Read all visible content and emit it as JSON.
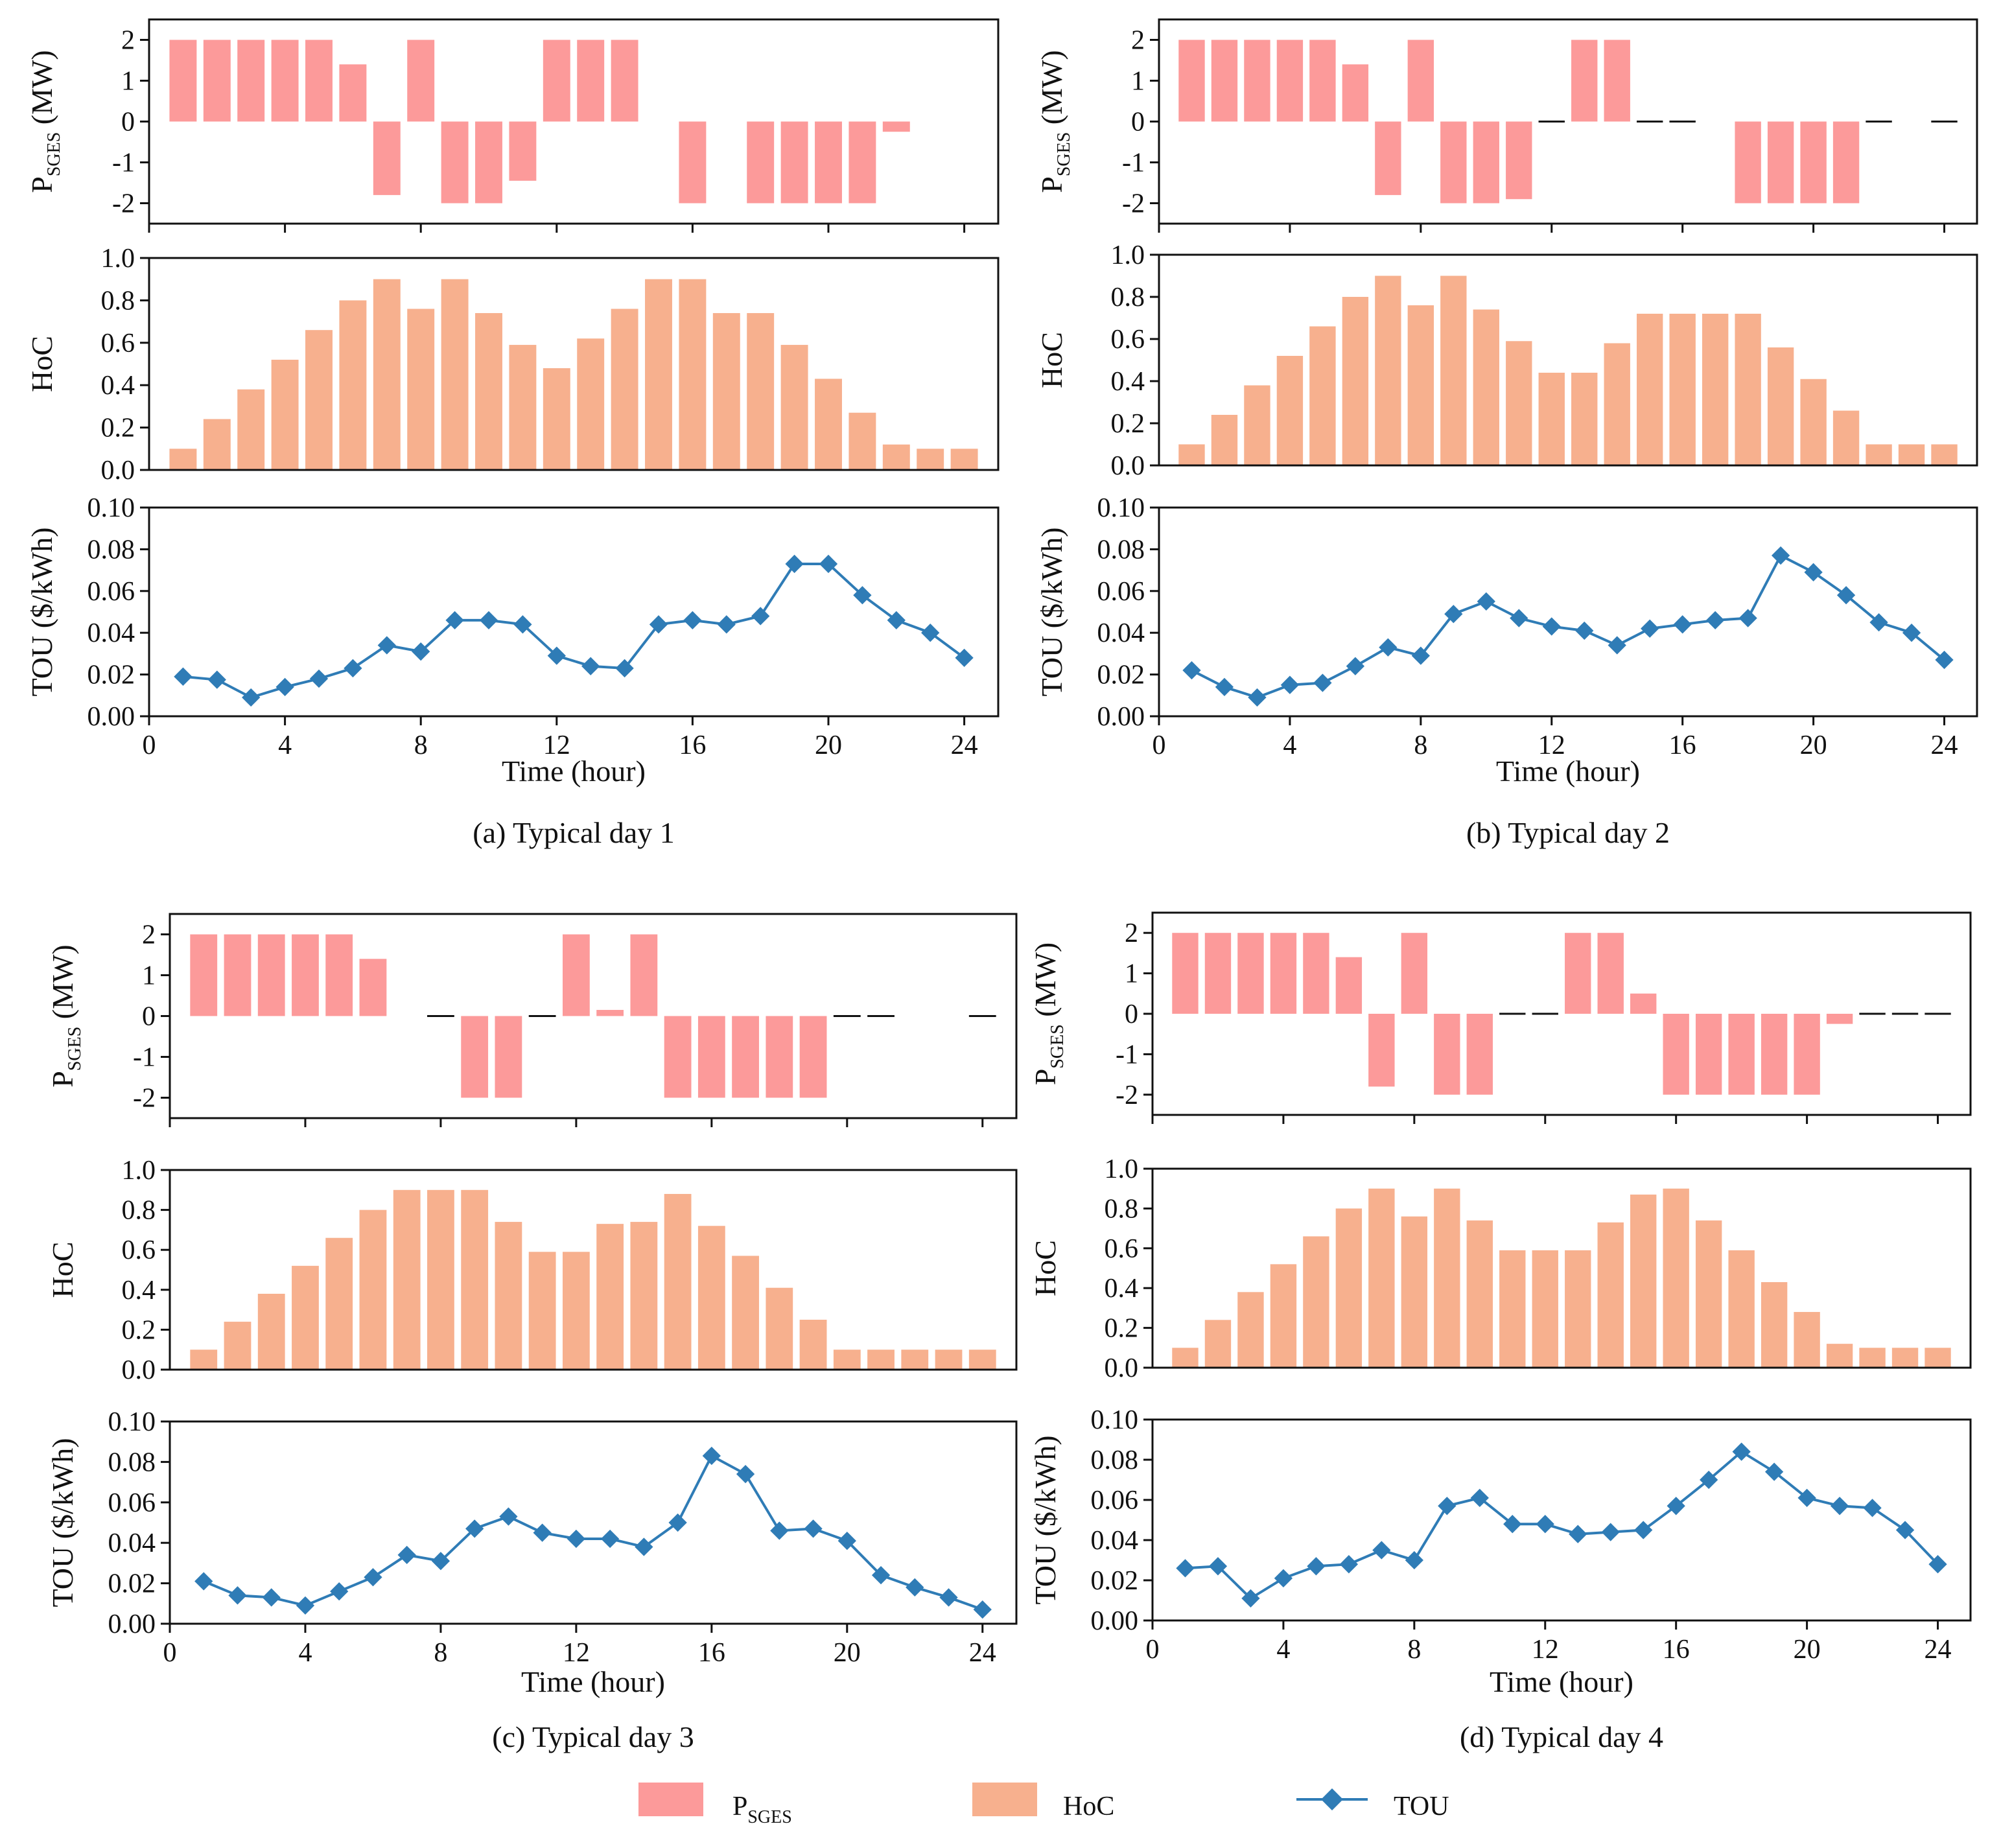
{
  "colors": {
    "psges": "#fc9a9a",
    "hoc": "#f7b08e",
    "tou_line": "#2f7cb6",
    "axis": "#111111"
  },
  "legend": {
    "psges_main": "P",
    "psges_sub": "SGES",
    "hoc": "HoC",
    "tou": "TOU"
  },
  "axis_labels": {
    "psges_main": "P",
    "psges_sub": "SGES",
    "psges_unit": "(MW)",
    "hoc": "HoC",
    "tou": "TOU ($/kWh)",
    "time": "Time (hour)"
  },
  "chart_data": [
    {
      "type": "bar+line",
      "caption": "(a) Typical day 1",
      "x": [
        1,
        2,
        3,
        4,
        5,
        6,
        7,
        8,
        9,
        10,
        11,
        12,
        13,
        14,
        15,
        16,
        17,
        18,
        19,
        20,
        21,
        22,
        23,
        24
      ],
      "psges": {
        "ylabel": "P_SGES (MW)",
        "ylim": [
          -2.5,
          2.5
        ],
        "yticks": [
          "2",
          "1",
          "0",
          "-1",
          "-2"
        ],
        "values": [
          2,
          2,
          2,
          2,
          2,
          1.4,
          -1.8,
          2,
          -2,
          -2,
          -1.45,
          2,
          2,
          2,
          null,
          -2,
          null,
          -2,
          -2,
          -2,
          -2,
          -0.25,
          null,
          null
        ]
      },
      "hoc": {
        "ylabel": "HoC",
        "ylim": [
          0,
          1.0
        ],
        "yticks": [
          "0.0",
          "0.2",
          "0.4",
          "0.6",
          "0.8",
          "1.0"
        ],
        "values": [
          0.1,
          0.24,
          0.38,
          0.52,
          0.66,
          0.8,
          0.9,
          0.76,
          0.9,
          0.74,
          0.59,
          0.48,
          0.62,
          0.76,
          0.9,
          0.9,
          0.74,
          0.74,
          0.59,
          0.43,
          0.27,
          0.12,
          0.1,
          0.1
        ]
      },
      "tou": {
        "ylabel": "TOU ($/kWh)",
        "xlabel": "Time (hour)",
        "ylim": [
          0,
          0.1
        ],
        "xlim": [
          0,
          25
        ],
        "yticks": [
          "0.00",
          "0.02",
          "0.04",
          "0.06",
          "0.08",
          "0.10"
        ],
        "xticks": [
          "0",
          "4",
          "8",
          "12",
          "16",
          "20",
          "24"
        ],
        "values": [
          0.019,
          0.0175,
          0.009,
          0.014,
          0.018,
          0.023,
          0.034,
          0.031,
          0.046,
          0.046,
          0.044,
          0.029,
          0.024,
          0.023,
          0.044,
          0.046,
          0.044,
          0.048,
          0.073,
          0.073,
          0.058,
          0.046,
          0.04,
          0.028
        ]
      }
    },
    {
      "type": "bar+line",
      "caption": "(b) Typical day 2",
      "x": [
        1,
        2,
        3,
        4,
        5,
        6,
        7,
        8,
        9,
        10,
        11,
        12,
        13,
        14,
        15,
        16,
        17,
        18,
        19,
        20,
        21,
        22,
        23,
        24
      ],
      "psges": {
        "ylabel": "P_SGES (MW)",
        "ylim": [
          -2.5,
          2.5
        ],
        "yticks": [
          "2",
          "1",
          "0",
          "-1",
          "-2"
        ],
        "values": [
          2,
          2,
          2,
          2,
          2,
          1.4,
          -1.8,
          2,
          -2,
          -2,
          -1.9,
          0,
          2,
          2,
          0,
          0,
          null,
          -2,
          -2,
          -2,
          -2,
          0,
          null,
          0
        ]
      },
      "hoc": {
        "ylabel": "HoC",
        "ylim": [
          0,
          1.0
        ],
        "yticks": [
          "0.0",
          "0.2",
          "0.4",
          "0.6",
          "0.8",
          "1.0"
        ],
        "values": [
          0.1,
          0.24,
          0.38,
          0.52,
          0.66,
          0.8,
          0.9,
          0.76,
          0.9,
          0.74,
          0.59,
          0.44,
          0.44,
          0.58,
          0.72,
          0.72,
          0.72,
          0.72,
          0.56,
          0.41,
          0.26,
          0.1,
          0.1,
          0.1
        ]
      },
      "tou": {
        "ylabel": "TOU ($/kWh)",
        "xlabel": "Time (hour)",
        "ylim": [
          0,
          0.1
        ],
        "xlim": [
          0,
          25
        ],
        "yticks": [
          "0.00",
          "0.02",
          "0.04",
          "0.06",
          "0.08",
          "0.10"
        ],
        "xticks": [
          "0",
          "4",
          "8",
          "12",
          "16",
          "20",
          "24"
        ],
        "values": [
          0.022,
          0.014,
          0.009,
          0.015,
          0.016,
          0.024,
          0.033,
          0.029,
          0.049,
          0.055,
          0.047,
          0.043,
          0.041,
          0.034,
          0.042,
          0.044,
          0.046,
          0.047,
          0.077,
          0.069,
          0.058,
          0.045,
          0.04,
          0.027
        ]
      }
    },
    {
      "type": "bar+line",
      "caption": "(c) Typical day 3",
      "x": [
        1,
        2,
        3,
        4,
        5,
        6,
        7,
        8,
        9,
        10,
        11,
        12,
        13,
        14,
        15,
        16,
        17,
        18,
        19,
        20,
        21,
        22,
        23,
        24
      ],
      "psges": {
        "ylabel": "P_SGES (MW)",
        "ylim": [
          -2.5,
          2.5
        ],
        "yticks": [
          "2",
          "1",
          "0",
          "-1",
          "-2"
        ],
        "values": [
          2,
          2,
          2,
          2,
          2,
          1.4,
          null,
          0,
          -2,
          -2,
          0,
          2,
          0.15,
          2,
          -2,
          -2,
          -2,
          -2,
          -2,
          0,
          0,
          null,
          null,
          0
        ]
      },
      "hoc": {
        "ylabel": "HoC",
        "ylim": [
          0,
          1.0
        ],
        "yticks": [
          "0.0",
          "0.2",
          "0.4",
          "0.6",
          "0.8",
          "1.0"
        ],
        "values": [
          0.1,
          0.24,
          0.38,
          0.52,
          0.66,
          0.8,
          0.9,
          0.9,
          0.9,
          0.74,
          0.59,
          0.59,
          0.73,
          0.74,
          0.88,
          0.72,
          0.57,
          0.41,
          0.25,
          0.1,
          0.1,
          0.1,
          0.1,
          0.1
        ]
      },
      "tou": {
        "ylabel": "TOU ($/kWh)",
        "xlabel": "Time (hour)",
        "ylim": [
          0,
          0.1
        ],
        "xlim": [
          0,
          25
        ],
        "yticks": [
          "0.00",
          "0.02",
          "0.04",
          "0.06",
          "0.08",
          "0.10"
        ],
        "xticks": [
          "0",
          "4",
          "8",
          "12",
          "16",
          "20",
          "24"
        ],
        "values": [
          0.021,
          0.014,
          0.013,
          0.009,
          0.016,
          0.023,
          0.034,
          0.031,
          0.047,
          0.053,
          0.045,
          0.042,
          0.042,
          0.038,
          0.05,
          0.083,
          0.074,
          0.046,
          0.047,
          0.041,
          0.024,
          0.018,
          0.013,
          0.007
        ]
      }
    },
    {
      "type": "bar+line",
      "caption": "(d) Typical day 4",
      "x": [
        1,
        2,
        3,
        4,
        5,
        6,
        7,
        8,
        9,
        10,
        11,
        12,
        13,
        14,
        15,
        16,
        17,
        18,
        19,
        20,
        21,
        22,
        23,
        24
      ],
      "psges": {
        "ylabel": "P_SGES (MW)",
        "ylim": [
          -2.5,
          2.5
        ],
        "yticks": [
          "2",
          "1",
          "0",
          "-1",
          "-2"
        ],
        "values": [
          2,
          2,
          2,
          2,
          2,
          1.4,
          -1.8,
          2,
          -2,
          -2,
          0,
          0,
          2,
          2,
          0.5,
          -2,
          -2,
          -2,
          -2,
          -2,
          -0.25,
          0,
          0,
          0
        ]
      },
      "hoc": {
        "ylabel": "HoC",
        "ylim": [
          0,
          1.0
        ],
        "yticks": [
          "0.0",
          "0.2",
          "0.4",
          "0.6",
          "0.8",
          "1.0"
        ],
        "values": [
          0.1,
          0.24,
          0.38,
          0.52,
          0.66,
          0.8,
          0.9,
          0.76,
          0.9,
          0.74,
          0.59,
          0.59,
          0.59,
          0.73,
          0.87,
          0.9,
          0.74,
          0.59,
          0.43,
          0.28,
          0.12,
          0.1,
          0.1,
          0.1
        ]
      },
      "tou": {
        "ylabel": "TOU ($/kWh)",
        "xlabel": "Time (hour)",
        "ylim": [
          0,
          0.1
        ],
        "xlim": [
          0,
          25
        ],
        "yticks": [
          "0.00",
          "0.02",
          "0.04",
          "0.06",
          "0.08",
          "0.10"
        ],
        "xticks": [
          "0",
          "4",
          "8",
          "12",
          "16",
          "20",
          "24"
        ],
        "values": [
          0.026,
          0.027,
          0.011,
          0.021,
          0.027,
          0.028,
          0.035,
          0.03,
          0.057,
          0.061,
          0.048,
          0.048,
          0.043,
          0.044,
          0.045,
          0.057,
          0.07,
          0.084,
          0.074,
          0.061,
          0.057,
          0.056,
          0.045,
          0.028
        ]
      }
    }
  ]
}
